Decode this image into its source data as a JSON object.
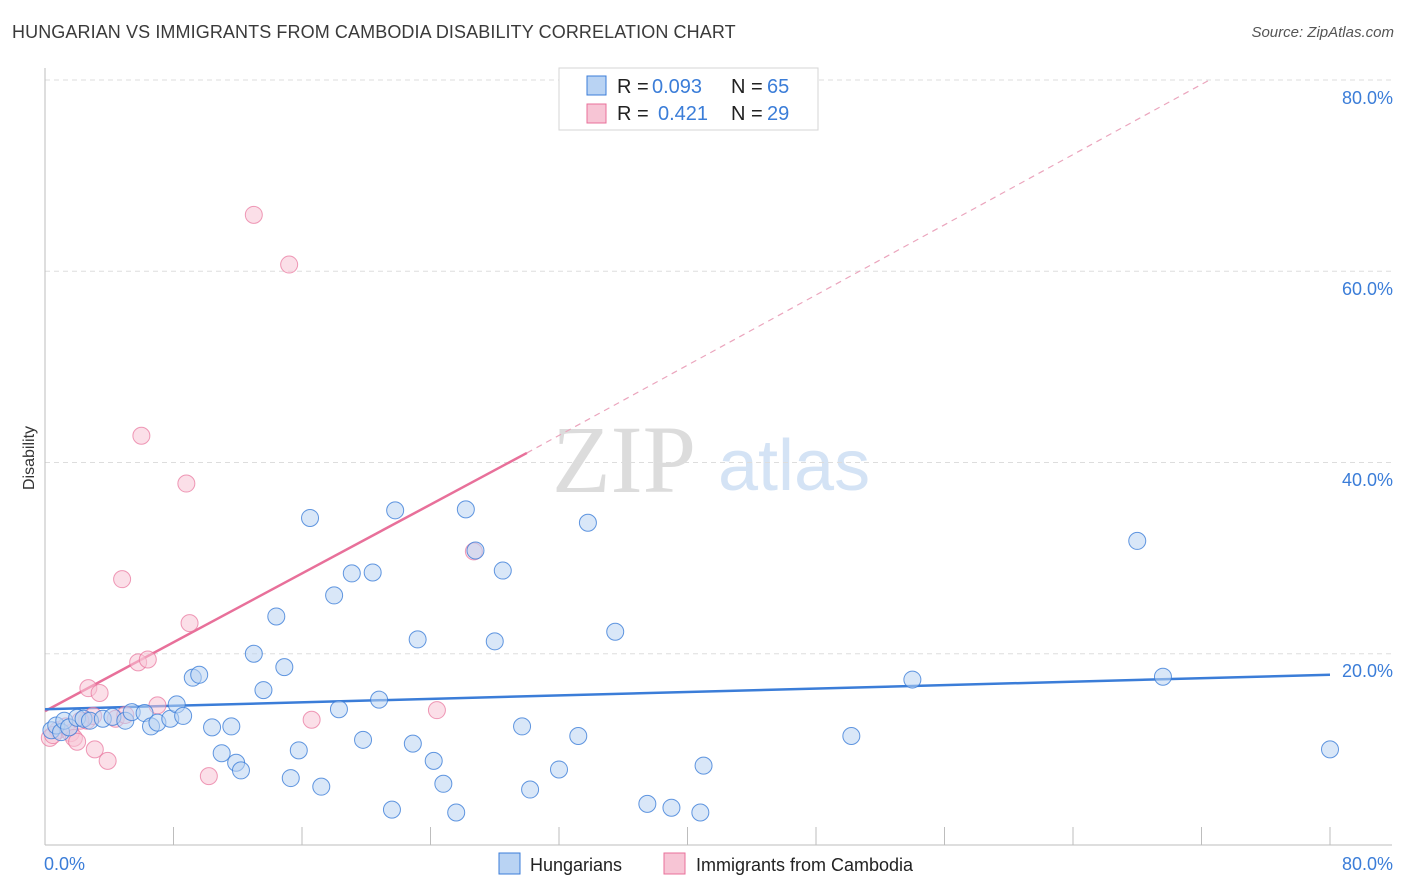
{
  "header": {
    "title": "HUNGARIAN VS IMMIGRANTS FROM CAMBODIA DISABILITY CORRELATION CHART",
    "source": "Source: ZipAtlas.com"
  },
  "watermark": {
    "zip": "ZIP",
    "atlas": "atlas"
  },
  "colors": {
    "blue": "#3b7dd8",
    "blue_fill": "#b9d3f3",
    "pink": "#e8709a",
    "pink_fill": "#f7c5d5",
    "grid": "#dddddd"
  },
  "legend": {
    "rows": [
      {
        "r_label": "R =",
        "r_value": "0.093",
        "n_label": "N =",
        "n_value": "65"
      },
      {
        "r_label": "R =",
        "r_value": "0.421",
        "n_label": "N =",
        "n_value": "29"
      }
    ]
  },
  "chart_data": {
    "type": "scatter",
    "title": "HUNGARIAN VS IMMIGRANTS FROM CAMBODIA DISABILITY CORRELATION CHART",
    "xlabel": "",
    "ylabel": "Disability",
    "xlim": [
      0,
      80
    ],
    "ylim": [
      0,
      80
    ],
    "x_tick_labels": [
      "0.0%",
      "80.0%"
    ],
    "y_tick_labels": [
      "20.0%",
      "40.0%",
      "60.0%",
      "80.0%"
    ],
    "y_ticks": [
      20,
      40,
      60,
      80
    ],
    "grid": true,
    "legend_position": "bottom",
    "series": [
      {
        "name": "Hungarians",
        "color": "#3b7dd8",
        "trend": {
          "x": [
            0,
            80
          ],
          "y": [
            14.2,
            17.8
          ],
          "dashed_extension": false
        },
        "points": [
          [
            0.4,
            12.0
          ],
          [
            0.7,
            12.5
          ],
          [
            1.0,
            11.8
          ],
          [
            1.2,
            13.0
          ],
          [
            1.5,
            12.3
          ],
          [
            2.0,
            13.3
          ],
          [
            2.4,
            13.2
          ],
          [
            2.8,
            13.0
          ],
          [
            3.6,
            13.2
          ],
          [
            4.2,
            13.4
          ],
          [
            5.0,
            13.0
          ],
          [
            5.4,
            13.9
          ],
          [
            6.2,
            13.8
          ],
          [
            6.6,
            12.4
          ],
          [
            7.0,
            12.8
          ],
          [
            7.8,
            13.2
          ],
          [
            8.2,
            14.7
          ],
          [
            8.6,
            13.5
          ],
          [
            9.2,
            17.5
          ],
          [
            9.6,
            17.8
          ],
          [
            10.4,
            12.3
          ],
          [
            11.0,
            9.6
          ],
          [
            11.6,
            12.4
          ],
          [
            11.9,
            8.6
          ],
          [
            12.2,
            7.8
          ],
          [
            13.0,
            20.0
          ],
          [
            13.6,
            16.2
          ],
          [
            14.4,
            23.9
          ],
          [
            14.9,
            18.6
          ],
          [
            15.3,
            7.0
          ],
          [
            15.8,
            9.9
          ],
          [
            16.5,
            34.2
          ],
          [
            17.2,
            6.1
          ],
          [
            18.0,
            26.1
          ],
          [
            18.3,
            14.2
          ],
          [
            19.1,
            28.4
          ],
          [
            19.8,
            11.0
          ],
          [
            20.4,
            28.5
          ],
          [
            20.8,
            15.2
          ],
          [
            21.6,
            3.7
          ],
          [
            21.8,
            35.0
          ],
          [
            22.9,
            10.6
          ],
          [
            23.2,
            21.5
          ],
          [
            24.2,
            8.8
          ],
          [
            24.8,
            6.4
          ],
          [
            25.6,
            3.4
          ],
          [
            26.2,
            35.1
          ],
          [
            26.8,
            30.8
          ],
          [
            28.0,
            21.3
          ],
          [
            28.5,
            28.7
          ],
          [
            29.7,
            12.4
          ],
          [
            30.2,
            5.8
          ],
          [
            32.0,
            7.9
          ],
          [
            33.2,
            11.4
          ],
          [
            33.8,
            33.7
          ],
          [
            35.5,
            22.3
          ],
          [
            37.5,
            4.3
          ],
          [
            39.0,
            3.9
          ],
          [
            40.8,
            3.4
          ],
          [
            41.0,
            8.3
          ],
          [
            50.2,
            11.4
          ],
          [
            54.0,
            17.3
          ],
          [
            68.0,
            31.8
          ],
          [
            69.6,
            17.6
          ],
          [
            80.0,
            10.0
          ]
        ]
      },
      {
        "name": "Immigrants from Cambodia",
        "color": "#e8709a",
        "trend": {
          "x": [
            0,
            30
          ],
          "y": [
            14.0,
            41.0
          ],
          "dashed_extension": true,
          "dashed_to": {
            "x": 72.5,
            "y": 80
          }
        },
        "points": [
          [
            0.3,
            11.2
          ],
          [
            0.8,
            12.0
          ],
          [
            1.3,
            12.4
          ],
          [
            1.6,
            11.7
          ],
          [
            1.8,
            11.2
          ],
          [
            2.0,
            10.8
          ],
          [
            2.6,
            13.0
          ],
          [
            2.7,
            16.4
          ],
          [
            3.0,
            13.5
          ],
          [
            3.1,
            10.0
          ],
          [
            3.4,
            15.9
          ],
          [
            3.9,
            8.8
          ],
          [
            4.4,
            13.2
          ],
          [
            4.8,
            27.8
          ],
          [
            5.0,
            13.6
          ],
          [
            5.8,
            19.1
          ],
          [
            6.0,
            42.8
          ],
          [
            6.4,
            19.4
          ],
          [
            7.0,
            14.6
          ],
          [
            8.8,
            37.8
          ],
          [
            9.0,
            23.2
          ],
          [
            10.2,
            7.2
          ],
          [
            13.0,
            65.9
          ],
          [
            15.2,
            60.7
          ],
          [
            16.6,
            13.1
          ],
          [
            24.4,
            14.1
          ],
          [
            26.7,
            30.7
          ],
          [
            0.5,
            11.5
          ],
          [
            2.2,
            13.0
          ]
        ]
      }
    ]
  },
  "bottom_legend": [
    {
      "label": "Hungarians"
    },
    {
      "label": "Immigrants from Cambodia"
    }
  ]
}
